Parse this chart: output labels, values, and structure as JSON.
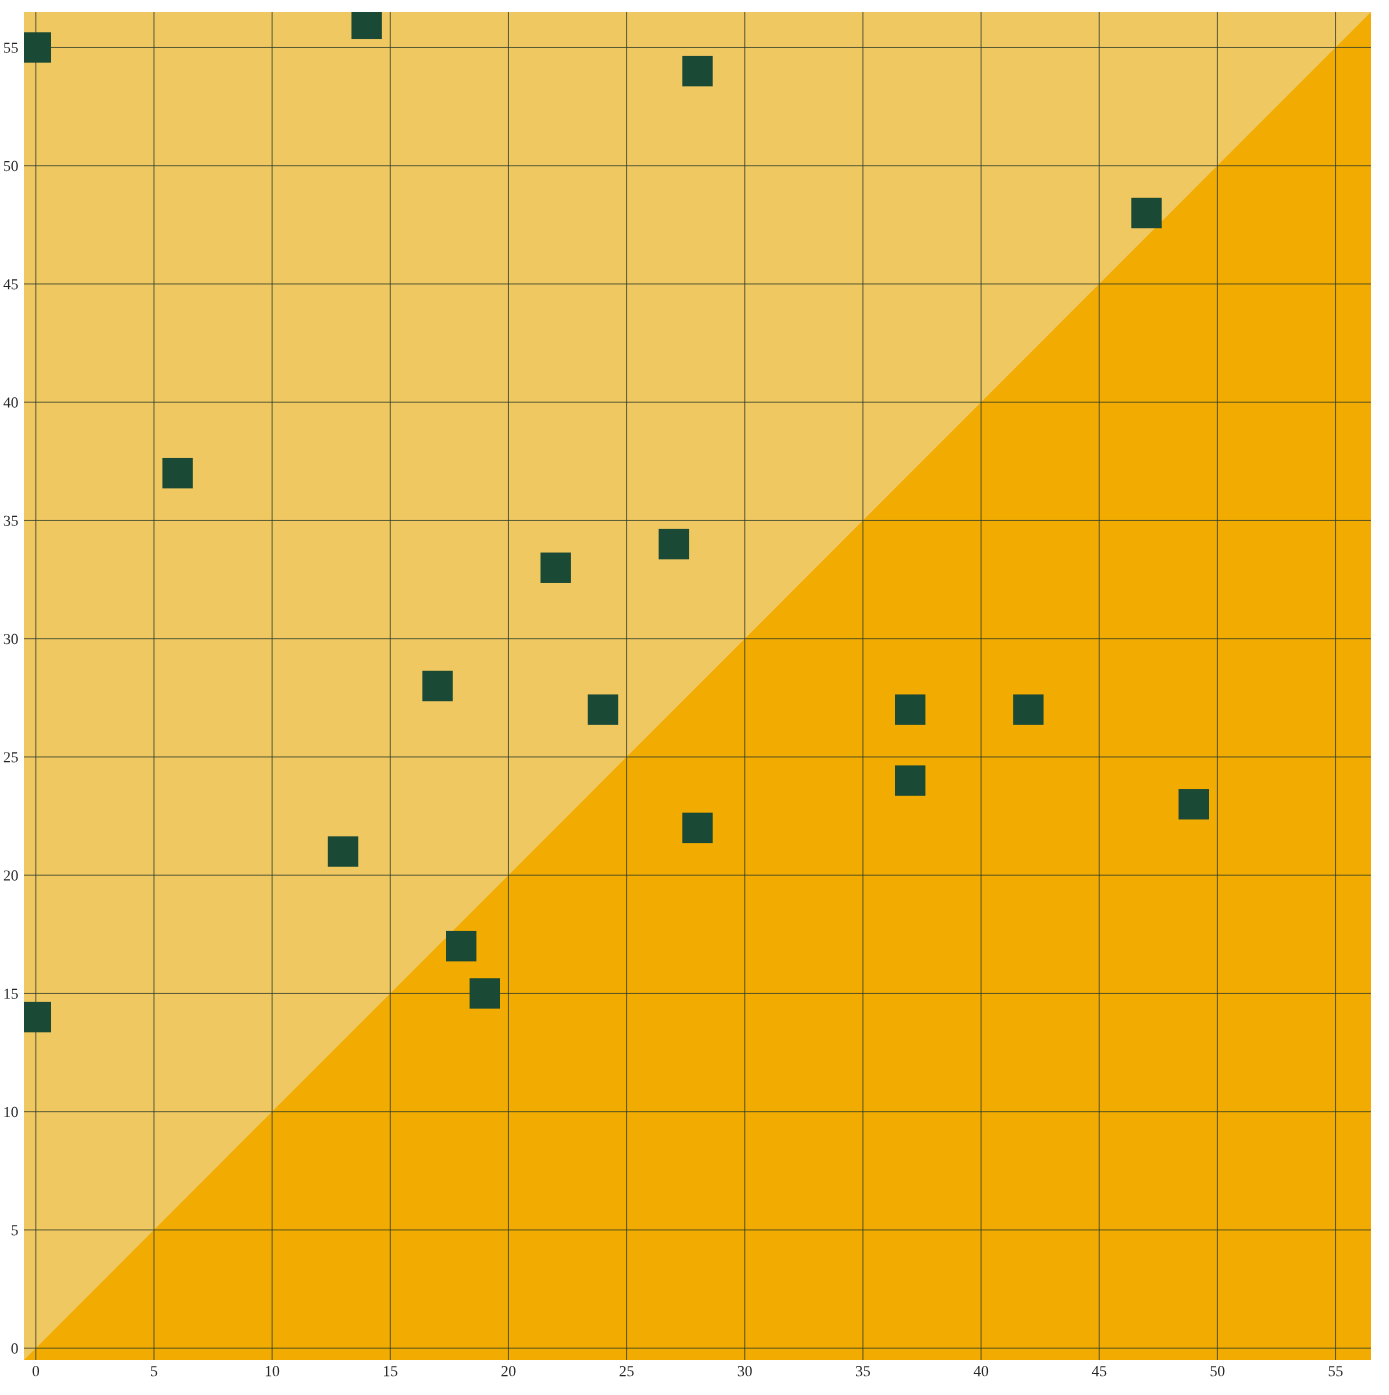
{
  "chart_data": {
    "type": "scatter",
    "xlim": [
      -0.5,
      56.5
    ],
    "ylim": [
      -0.5,
      56.5
    ],
    "xticks": [
      0,
      5,
      10,
      15,
      20,
      25,
      30,
      35,
      40,
      45,
      50,
      55
    ],
    "yticks": [
      0,
      5,
      10,
      15,
      20,
      25,
      30,
      35,
      40,
      45,
      50,
      55
    ],
    "grid": true,
    "series": [
      {
        "type": "area",
        "color": "#f2ab00",
        "x": [
          -0.5,
          56.5
        ],
        "values": [
          -0.5,
          56.5
        ]
      },
      {
        "marker": "square",
        "color": "#1a4a36",
        "x": [
          0,
          14,
          28,
          47,
          6,
          27,
          22,
          17,
          24,
          37,
          42,
          37,
          49,
          28,
          13,
          18,
          19,
          0
        ],
        "values": [
          55,
          56,
          54,
          48,
          37,
          34,
          33,
          28,
          27,
          27,
          27,
          24,
          23,
          22,
          21,
          17,
          15,
          14
        ]
      }
    ]
  }
}
